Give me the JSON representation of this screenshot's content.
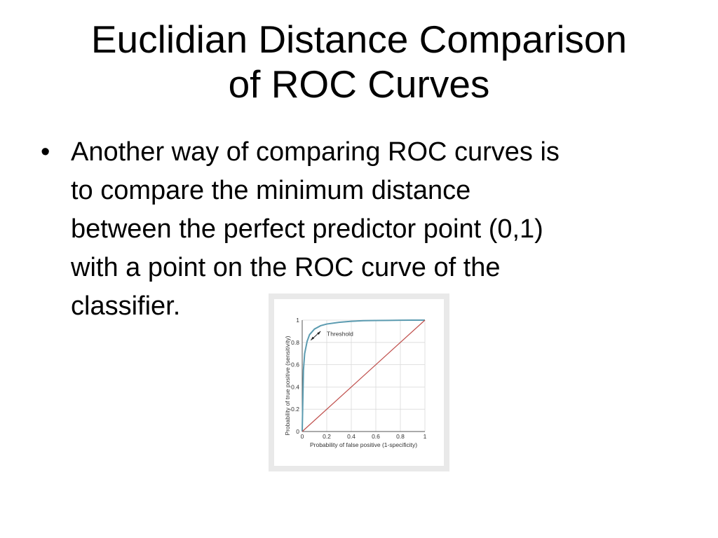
{
  "slide": {
    "title_lines": [
      "Euclidian Distance Comparison",
      "of ROC Curves"
    ],
    "bullet_symbol": "•",
    "bullet_lines": [
      "Another way of comparing ROC curves is",
      "to compare the minimum distance",
      "between the perfect predictor point (0,1)",
      "with a point on the ROC curve of the",
      "classifier."
    ]
  },
  "chart_data": {
    "type": "line",
    "xlabel": "Probability of false positive (1-specificity)",
    "ylabel": "Probability of true positive (sensitivity)",
    "xlim": [
      0,
      1
    ],
    "ylim": [
      0,
      1
    ],
    "x_ticks": [
      "0",
      "0.2",
      "0.4",
      "0.6",
      "0.8",
      "1"
    ],
    "y_ticks": [
      "0",
      "0.2",
      "0.4",
      "0.6",
      "0.8",
      "1"
    ],
    "grid": true,
    "annotation": "Threshold",
    "series": [
      {
        "color": "#5b9bb0",
        "x": [
          0,
          0.01,
          0.02,
          0.04,
          0.06,
          0.1,
          0.15,
          0.2,
          0.3,
          0.4,
          0.5,
          0.6,
          0.7,
          0.8,
          0.9,
          1.0
        ],
        "y": [
          0,
          0.55,
          0.7,
          0.81,
          0.87,
          0.92,
          0.95,
          0.965,
          0.98,
          0.99,
          0.995,
          0.997,
          0.998,
          0.999,
          1.0,
          1.0
        ]
      },
      {
        "color": "#c0504d",
        "x": [
          0,
          1
        ],
        "y": [
          0,
          1
        ]
      }
    ]
  }
}
